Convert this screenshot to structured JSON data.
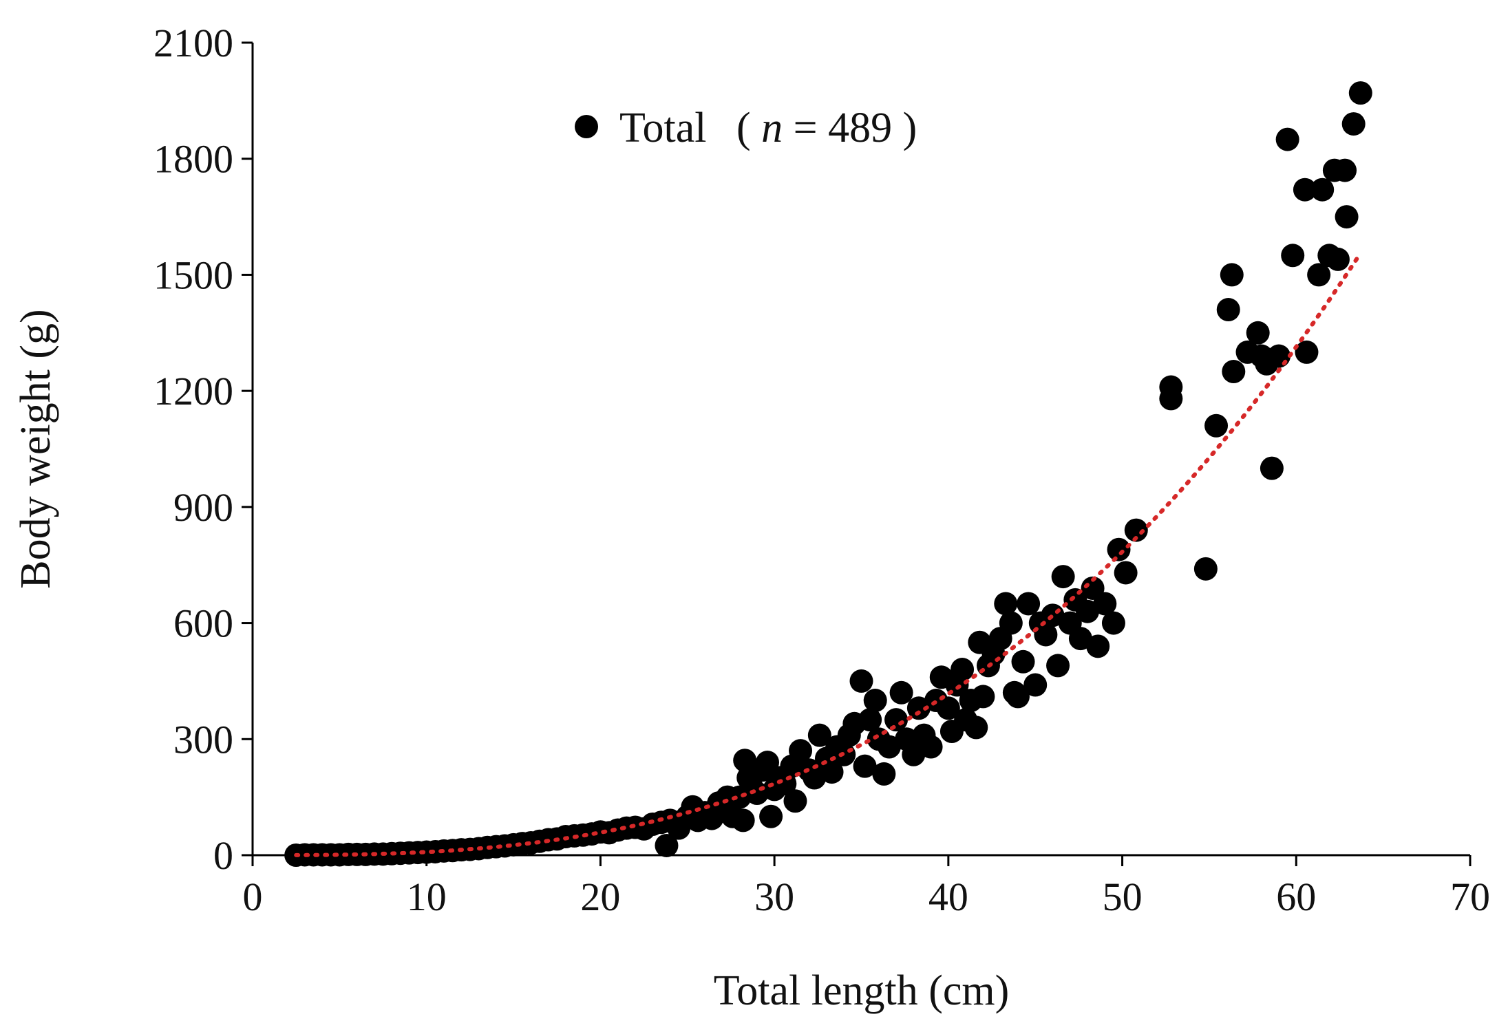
{
  "chart_data": {
    "type": "scatter",
    "title": "",
    "xlabel": "Total length (cm)",
    "ylabel": "Body weight (g)",
    "xlim": [
      0,
      70
    ],
    "ylim": [
      0,
      2100
    ],
    "xticks": [
      0,
      10,
      20,
      30,
      40,
      50,
      60,
      70
    ],
    "yticks": [
      0,
      300,
      600,
      900,
      1200,
      1500,
      1800,
      2100
    ],
    "grid": false,
    "legend": {
      "position": "top-left",
      "label_prefix": "Total",
      "label_paren_open": "(",
      "label_n": "n",
      "label_eq": " = 489",
      "label_paren_close": ")"
    },
    "colors": {
      "points": "#000000",
      "trend": "#d62828",
      "axis": "#000000"
    },
    "trendline": {
      "type": "power",
      "a": 0.0122,
      "b": 2.83,
      "x_range": [
        2.5,
        63.5
      ]
    },
    "series": [
      {
        "name": "Total",
        "points": [
          [
            2.5,
            0
          ],
          [
            3,
            1
          ],
          [
            3.5,
            1
          ],
          [
            4,
            1
          ],
          [
            4.5,
            1
          ],
          [
            5,
            1
          ],
          [
            5.5,
            2
          ],
          [
            6,
            2
          ],
          [
            6.5,
            2
          ],
          [
            7,
            3
          ],
          [
            7.5,
            3
          ],
          [
            8,
            4
          ],
          [
            8.5,
            5
          ],
          [
            9,
            6
          ],
          [
            9.5,
            7
          ],
          [
            10,
            8
          ],
          [
            10.5,
            9
          ],
          [
            11,
            11
          ],
          [
            11.5,
            12
          ],
          [
            12,
            14
          ],
          [
            12.5,
            15
          ],
          [
            13,
            17
          ],
          [
            13.5,
            20
          ],
          [
            14,
            22
          ],
          [
            14.5,
            24
          ],
          [
            15,
            27
          ],
          [
            15.5,
            30
          ],
          [
            16,
            32
          ],
          [
            16.5,
            36
          ],
          [
            17,
            40
          ],
          [
            17.5,
            42
          ],
          [
            18,
            48
          ],
          [
            18.5,
            50
          ],
          [
            19,
            52
          ],
          [
            19.5,
            55
          ],
          [
            20,
            60
          ],
          [
            20.5,
            58
          ],
          [
            21,
            65
          ],
          [
            21.5,
            70
          ],
          [
            22,
            72
          ],
          [
            22.5,
            68
          ],
          [
            23,
            80
          ],
          [
            23.5,
            85
          ],
          [
            23.8,
            25
          ],
          [
            24,
            90
          ],
          [
            24.5,
            70
          ],
          [
            25,
            100
          ],
          [
            25.3,
            125
          ],
          [
            25.6,
            90
          ],
          [
            26,
            110
          ],
          [
            26.4,
            95
          ],
          [
            26.8,
            135
          ],
          [
            27,
            120
          ],
          [
            27.3,
            150
          ],
          [
            27.6,
            100
          ],
          [
            28,
            150
          ],
          [
            28.2,
            90
          ],
          [
            28.3,
            245
          ],
          [
            28.5,
            200
          ],
          [
            28.7,
            175
          ],
          [
            29,
            160
          ],
          [
            29.3,
            220
          ],
          [
            29.6,
            240
          ],
          [
            29.8,
            100
          ],
          [
            30,
            170
          ],
          [
            30.3,
            200
          ],
          [
            30.6,
            185
          ],
          [
            31,
            230
          ],
          [
            31.2,
            140
          ],
          [
            31.5,
            270
          ],
          [
            32,
            220
          ],
          [
            32.3,
            200
          ],
          [
            32.6,
            310
          ],
          [
            33,
            250
          ],
          [
            33.3,
            215
          ],
          [
            33.6,
            280
          ],
          [
            34,
            260
          ],
          [
            34.3,
            310
          ],
          [
            34.6,
            340
          ],
          [
            35,
            450
          ],
          [
            35.2,
            230
          ],
          [
            35.5,
            350
          ],
          [
            35.8,
            400
          ],
          [
            36,
            300
          ],
          [
            36.3,
            210
          ],
          [
            36.6,
            280
          ],
          [
            37,
            350
          ],
          [
            37.3,
            420
          ],
          [
            37.6,
            300
          ],
          [
            38,
            260
          ],
          [
            38.3,
            380
          ],
          [
            38.6,
            310
          ],
          [
            39,
            280
          ],
          [
            39.3,
            400
          ],
          [
            39.6,
            460
          ],
          [
            40,
            380
          ],
          [
            40.2,
            320
          ],
          [
            40.5,
            440
          ],
          [
            40.8,
            480
          ],
          [
            41,
            350
          ],
          [
            41.3,
            400
          ],
          [
            41.6,
            330
          ],
          [
            41.8,
            550
          ],
          [
            42,
            410
          ],
          [
            42.3,
            490
          ],
          [
            42.6,
            520
          ],
          [
            43,
            560
          ],
          [
            43.3,
            650
          ],
          [
            43.6,
            600
          ],
          [
            43.8,
            420
          ],
          [
            44,
            410
          ],
          [
            44.3,
            500
          ],
          [
            44.6,
            650
          ],
          [
            45,
            440
          ],
          [
            45.3,
            600
          ],
          [
            45.6,
            570
          ],
          [
            46,
            620
          ],
          [
            46.3,
            490
          ],
          [
            46.6,
            720
          ],
          [
            47,
            600
          ],
          [
            47.3,
            660
          ],
          [
            47.6,
            560
          ],
          [
            48,
            630
          ],
          [
            48.3,
            690
          ],
          [
            48.6,
            540
          ],
          [
            49,
            650
          ],
          [
            49.5,
            600
          ],
          [
            49.8,
            790
          ],
          [
            50.2,
            730
          ],
          [
            50.8,
            840
          ],
          [
            52.8,
            1210
          ],
          [
            52.8,
            1180
          ],
          [
            54.8,
            740
          ],
          [
            55.4,
            1110
          ],
          [
            56.1,
            1410
          ],
          [
            56.3,
            1500
          ],
          [
            56.4,
            1250
          ],
          [
            57.2,
            1300
          ],
          [
            57.8,
            1350
          ],
          [
            58,
            1290
          ],
          [
            58.3,
            1270
          ],
          [
            58.6,
            1000
          ],
          [
            59,
            1290
          ],
          [
            59.5,
            1850
          ],
          [
            59.8,
            1550
          ],
          [
            60.5,
            1720
          ],
          [
            60.6,
            1300
          ],
          [
            61.3,
            1500
          ],
          [
            61.5,
            1720
          ],
          [
            61.9,
            1550
          ],
          [
            62.2,
            1770
          ],
          [
            62.4,
            1540
          ],
          [
            62.8,
            1770
          ],
          [
            62.9,
            1650
          ],
          [
            63.3,
            1890
          ],
          [
            63.7,
            1970
          ]
        ]
      }
    ]
  }
}
